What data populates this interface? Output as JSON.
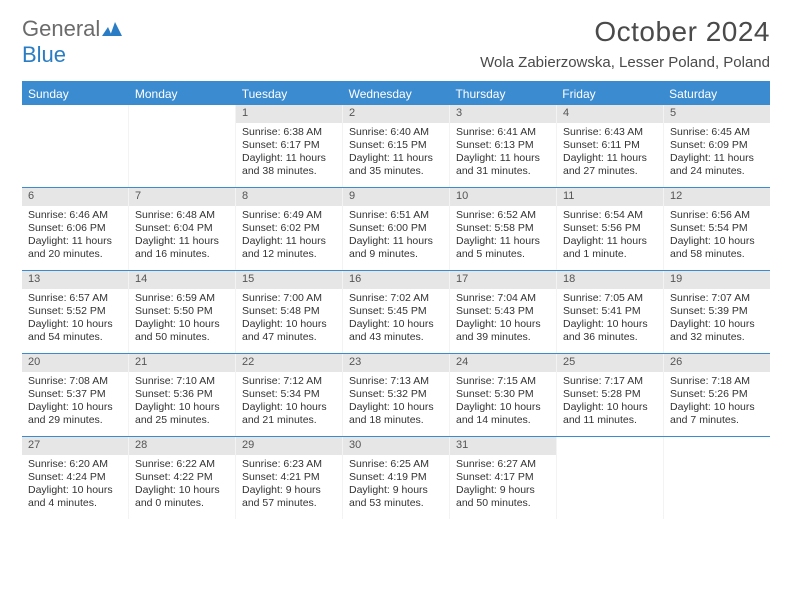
{
  "logo": {
    "text_general": "General",
    "text_blue": "Blue",
    "icon_color": "#2a7dc4"
  },
  "title": "October 2024",
  "location": "Wola Zabierzowska, Lesser Poland, Poland",
  "colors": {
    "header_bg": "#3b8bd0",
    "header_text": "#ffffff",
    "daynum_bg": "#e6e6e6",
    "border": "#3b8bd0",
    "text": "#333333"
  },
  "days_of_week": [
    "Sunday",
    "Monday",
    "Tuesday",
    "Wednesday",
    "Thursday",
    "Friday",
    "Saturday"
  ],
  "weeks": [
    [
      {
        "empty": true
      },
      {
        "empty": true
      },
      {
        "num": "1",
        "sunrise": "6:38 AM",
        "sunset": "6:17 PM",
        "daylight": "11 hours and 38 minutes."
      },
      {
        "num": "2",
        "sunrise": "6:40 AM",
        "sunset": "6:15 PM",
        "daylight": "11 hours and 35 minutes."
      },
      {
        "num": "3",
        "sunrise": "6:41 AM",
        "sunset": "6:13 PM",
        "daylight": "11 hours and 31 minutes."
      },
      {
        "num": "4",
        "sunrise": "6:43 AM",
        "sunset": "6:11 PM",
        "daylight": "11 hours and 27 minutes."
      },
      {
        "num": "5",
        "sunrise": "6:45 AM",
        "sunset": "6:09 PM",
        "daylight": "11 hours and 24 minutes."
      }
    ],
    [
      {
        "num": "6",
        "sunrise": "6:46 AM",
        "sunset": "6:06 PM",
        "daylight": "11 hours and 20 minutes."
      },
      {
        "num": "7",
        "sunrise": "6:48 AM",
        "sunset": "6:04 PM",
        "daylight": "11 hours and 16 minutes."
      },
      {
        "num": "8",
        "sunrise": "6:49 AM",
        "sunset": "6:02 PM",
        "daylight": "11 hours and 12 minutes."
      },
      {
        "num": "9",
        "sunrise": "6:51 AM",
        "sunset": "6:00 PM",
        "daylight": "11 hours and 9 minutes."
      },
      {
        "num": "10",
        "sunrise": "6:52 AM",
        "sunset": "5:58 PM",
        "daylight": "11 hours and 5 minutes."
      },
      {
        "num": "11",
        "sunrise": "6:54 AM",
        "sunset": "5:56 PM",
        "daylight": "11 hours and 1 minute."
      },
      {
        "num": "12",
        "sunrise": "6:56 AM",
        "sunset": "5:54 PM",
        "daylight": "10 hours and 58 minutes."
      }
    ],
    [
      {
        "num": "13",
        "sunrise": "6:57 AM",
        "sunset": "5:52 PM",
        "daylight": "10 hours and 54 minutes."
      },
      {
        "num": "14",
        "sunrise": "6:59 AM",
        "sunset": "5:50 PM",
        "daylight": "10 hours and 50 minutes."
      },
      {
        "num": "15",
        "sunrise": "7:00 AM",
        "sunset": "5:48 PM",
        "daylight": "10 hours and 47 minutes."
      },
      {
        "num": "16",
        "sunrise": "7:02 AM",
        "sunset": "5:45 PM",
        "daylight": "10 hours and 43 minutes."
      },
      {
        "num": "17",
        "sunrise": "7:04 AM",
        "sunset": "5:43 PM",
        "daylight": "10 hours and 39 minutes."
      },
      {
        "num": "18",
        "sunrise": "7:05 AM",
        "sunset": "5:41 PM",
        "daylight": "10 hours and 36 minutes."
      },
      {
        "num": "19",
        "sunrise": "7:07 AM",
        "sunset": "5:39 PM",
        "daylight": "10 hours and 32 minutes."
      }
    ],
    [
      {
        "num": "20",
        "sunrise": "7:08 AM",
        "sunset": "5:37 PM",
        "daylight": "10 hours and 29 minutes."
      },
      {
        "num": "21",
        "sunrise": "7:10 AM",
        "sunset": "5:36 PM",
        "daylight": "10 hours and 25 minutes."
      },
      {
        "num": "22",
        "sunrise": "7:12 AM",
        "sunset": "5:34 PM",
        "daylight": "10 hours and 21 minutes."
      },
      {
        "num": "23",
        "sunrise": "7:13 AM",
        "sunset": "5:32 PM",
        "daylight": "10 hours and 18 minutes."
      },
      {
        "num": "24",
        "sunrise": "7:15 AM",
        "sunset": "5:30 PM",
        "daylight": "10 hours and 14 minutes."
      },
      {
        "num": "25",
        "sunrise": "7:17 AM",
        "sunset": "5:28 PM",
        "daylight": "10 hours and 11 minutes."
      },
      {
        "num": "26",
        "sunrise": "7:18 AM",
        "sunset": "5:26 PM",
        "daylight": "10 hours and 7 minutes."
      }
    ],
    [
      {
        "num": "27",
        "sunrise": "6:20 AM",
        "sunset": "4:24 PM",
        "daylight": "10 hours and 4 minutes."
      },
      {
        "num": "28",
        "sunrise": "6:22 AM",
        "sunset": "4:22 PM",
        "daylight": "10 hours and 0 minutes."
      },
      {
        "num": "29",
        "sunrise": "6:23 AM",
        "sunset": "4:21 PM",
        "daylight": "9 hours and 57 minutes."
      },
      {
        "num": "30",
        "sunrise": "6:25 AM",
        "sunset": "4:19 PM",
        "daylight": "9 hours and 53 minutes."
      },
      {
        "num": "31",
        "sunrise": "6:27 AM",
        "sunset": "4:17 PM",
        "daylight": "9 hours and 50 minutes."
      },
      {
        "empty": true
      },
      {
        "empty": true
      }
    ]
  ],
  "labels": {
    "sunrise_prefix": "Sunrise: ",
    "sunset_prefix": "Sunset: ",
    "daylight_prefix": "Daylight: "
  }
}
